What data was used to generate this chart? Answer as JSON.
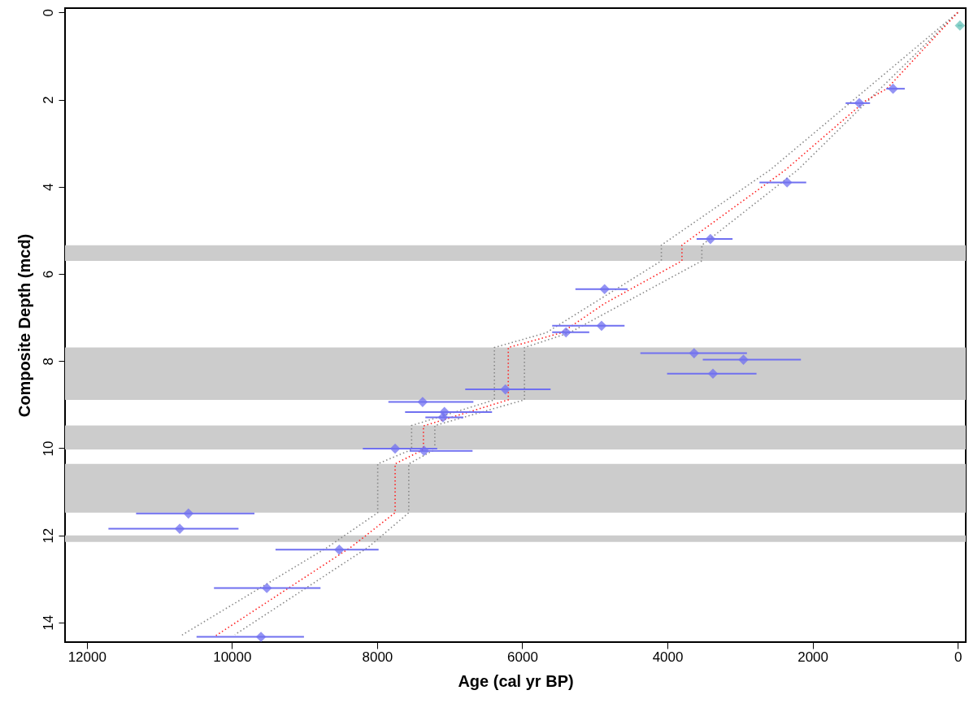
{
  "chart_data": {
    "type": "scatter",
    "xlabel": "Age (cal yr BP)",
    "ylabel": "Composite Depth (mcd)",
    "xlim": [
      12300,
      -110
    ],
    "ylim": [
      14.45,
      -0.1
    ],
    "xticks": [
      12000,
      10000,
      8000,
      6000,
      4000,
      2000,
      0
    ],
    "yticks": [
      0,
      2,
      4,
      6,
      8,
      10,
      12,
      14
    ],
    "grid": false,
    "bands": [
      {
        "axis": "y",
        "from": 5.34,
        "to": 5.7,
        "color": "#cccccc"
      },
      {
        "axis": "y",
        "from": 7.69,
        "to": 8.89,
        "color": "#cccccc"
      },
      {
        "axis": "y",
        "from": 9.48,
        "to": 10.03,
        "color": "#cccccc"
      },
      {
        "axis": "y",
        "from": 10.36,
        "to": 11.48,
        "color": "#cccccc"
      },
      {
        "axis": "y",
        "from": 12.0,
        "to": 12.15,
        "color": "#cccccc"
      }
    ],
    "series": [
      {
        "type": "line",
        "color": "#888888",
        "line_style": "dotted",
        "x": [
          0,
          2583,
          4084,
          4084,
          5670,
          6384,
          6384,
          7525,
          7525,
          7992,
          7992,
          8680,
          10700
        ],
        "values": [
          0,
          3.61,
          5.34,
          5.7,
          7.35,
          7.69,
          8.89,
          9.48,
          10.03,
          10.36,
          11.48,
          12.27,
          14.3
        ]
      },
      {
        "type": "line",
        "color": "#888888",
        "line_style": "dotted",
        "x": [
          0,
          2203,
          3526,
          3526,
          5350,
          5970,
          5970,
          7205,
          7205,
          7564,
          7564,
          8120,
          9960
        ],
        "values": [
          0,
          3.61,
          5.34,
          5.7,
          7.35,
          7.69,
          8.89,
          9.48,
          10.03,
          10.36,
          11.48,
          12.27,
          14.28
        ]
      },
      {
        "type": "line",
        "color": "#ff2020",
        "line_style": "dotted",
        "x": [
          0,
          978,
          1273,
          2372,
          3800,
          3800,
          4867,
          5458,
          6193,
          6193,
          7362,
          7362,
          7752,
          7752,
          8360,
          10220
        ],
        "values": [
          0,
          1.75,
          2.03,
          3.61,
          5.34,
          5.7,
          6.68,
          7.35,
          7.69,
          8.89,
          9.49,
          10.03,
          10.36,
          11.48,
          12.27,
          14.3
        ]
      },
      {
        "color": "#7070f0",
        "marker": "diamond",
        "x": [
          892,
          1357,
          2352,
          3408,
          4866,
          4908,
          5398,
          3633,
          2953,
          3373,
          6233,
          7373,
          7073,
          7093,
          7752,
          7353,
          8522,
          10600,
          10720,
          9520,
          9600
        ],
        "values": [
          1.75,
          2.08,
          3.9,
          5.2,
          6.35,
          7.19,
          7.34,
          7.82,
          7.97,
          8.29,
          8.65,
          8.94,
          9.17,
          9.29,
          10.01,
          10.06,
          12.33,
          11.5,
          11.85,
          13.21,
          14.33
        ],
        "xerrors": [
          [
            985,
            730
          ],
          [
            1545,
            1209
          ],
          [
            2732,
            2088
          ],
          [
            3598,
            3103
          ],
          [
            5268,
            4549
          ],
          [
            5588,
            4591
          ],
          [
            5588,
            5077
          ],
          [
            4373,
            2905
          ],
          [
            3513,
            2161
          ],
          [
            4005,
            2773
          ],
          [
            6786,
            5610
          ],
          [
            7845,
            6674
          ],
          [
            7615,
            6417
          ],
          [
            7335,
            6813
          ],
          [
            8197,
            7172
          ],
          [
            7552,
            6685
          ],
          [
            9400,
            7980
          ],
          [
            11321,
            9690
          ],
          [
            11702,
            9910
          ],
          [
            10248,
            8780
          ],
          [
            10488,
            9008
          ]
        ]
      },
      {
        "color": "#66c2b8",
        "marker": "diamond",
        "x": [
          -30
        ],
        "values": [
          0.3
        ],
        "xerrors": [
          [
            0,
            -60
          ]
        ]
      }
    ]
  }
}
